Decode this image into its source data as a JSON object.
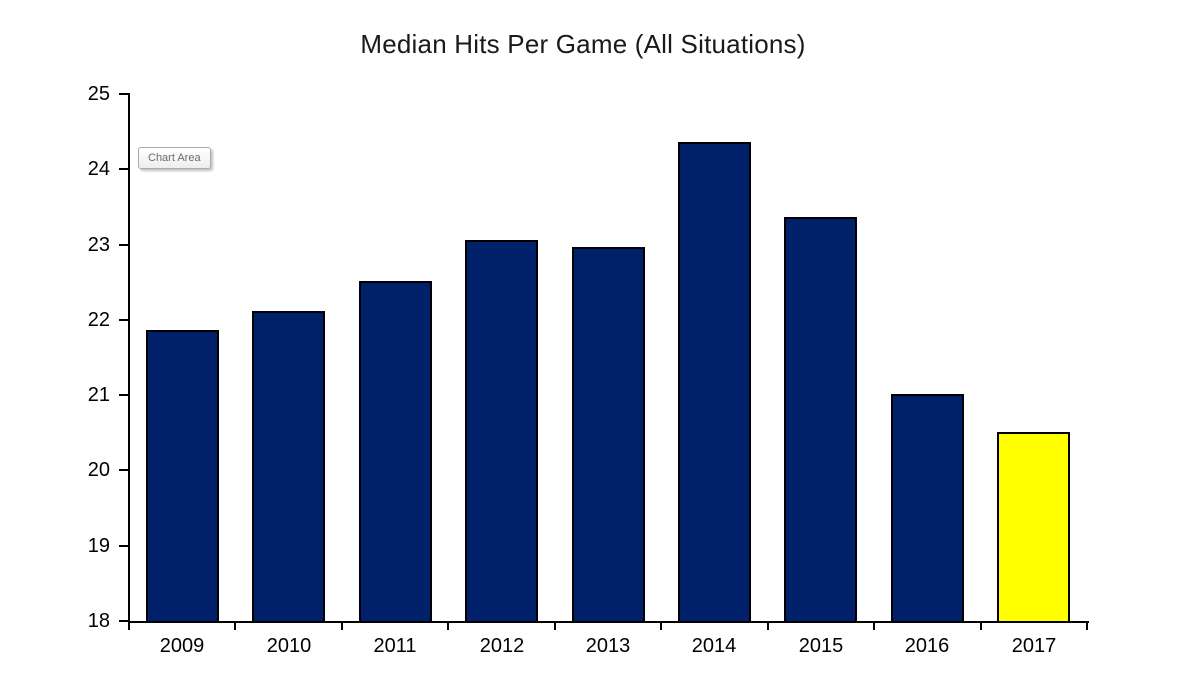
{
  "chart_data": {
    "type": "bar",
    "title": "Median Hits Per Game (All Situations)",
    "categories": [
      "2009",
      "2010",
      "2011",
      "2012",
      "2013",
      "2014",
      "2015",
      "2016",
      "2017"
    ],
    "values": [
      21.85,
      22.1,
      22.5,
      23.05,
      22.95,
      24.35,
      23.35,
      21.0,
      20.5
    ],
    "ylim": [
      18,
      25
    ],
    "yticks": [
      18,
      19,
      20,
      21,
      22,
      23,
      24,
      25
    ],
    "xlabel": "",
    "ylabel": "",
    "grid": false,
    "legend": "none",
    "bar_color": "#002169",
    "bar_border_color": "#000000",
    "highlight_index": 8,
    "highlight_color": "#ffff00",
    "axis_color": "#000000",
    "background_color": "#ffffff"
  },
  "overlay": {
    "chart_area_tooltip": "Chart Area"
  }
}
